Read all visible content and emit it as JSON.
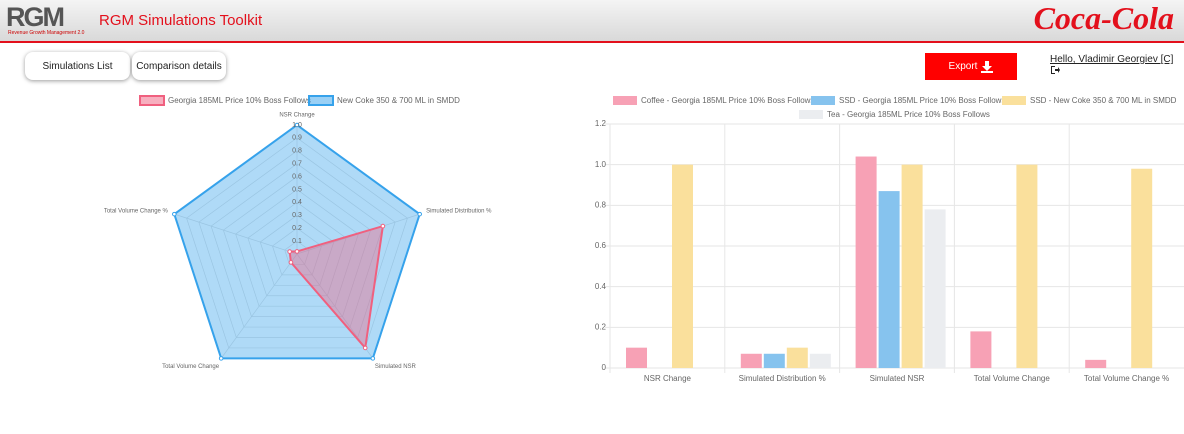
{
  "header": {
    "logo": "RGM",
    "logo_subtitle": "Revenue Growth Management 2.0",
    "title": "RGM Simulations Toolkit",
    "brand": "Coca-Cola"
  },
  "nav": {
    "buttons": [
      "Simulations List",
      "Comparison details"
    ],
    "export": "Export",
    "user": "Hello, Vladimir Georgiev [C]"
  },
  "chart_data": [
    {
      "type": "radar",
      "categories": [
        "NSR Change",
        "Simulated Distribution %",
        "Simulated NSR",
        "Total Volume Change",
        "Total Volume Change %"
      ],
      "series": [
        {
          "name": "Georgia 185ML Price  10% Boss Follows",
          "color": "#f0607f",
          "values": [
            0.02,
            0.7,
            0.9,
            0.08,
            0.06
          ]
        },
        {
          "name": "New Coke 350 & 700 ML in SMDD",
          "color": "#36a2eb",
          "values": [
            1,
            1,
            1,
            1,
            1
          ]
        }
      ],
      "ylim": [
        0,
        1
      ],
      "yticks": [
        0.1,
        0.2,
        0.3,
        0.4,
        0.5,
        0.6,
        0.7,
        0.8,
        0.9,
        {
          "value": 1,
          "label": "1.0"
        }
      ]
    },
    {
      "type": "bar",
      "categories": [
        "NSR Change",
        "Simulated Distribution %",
        "Simulated NSR",
        "Total Volume Change",
        "Total Volume Change %"
      ],
      "series": [
        {
          "name": "Coffee - Georgia 185ML Price  10% Boss Follows",
          "color": "#f7a1b5",
          "values": [
            0.1,
            0.07,
            1.04,
            0.18,
            0.04
          ]
        },
        {
          "name": "SSD - Georgia 185ML Price  10% Boss Follows",
          "color": "#86c3ee",
          "values": [
            0,
            0.07,
            0.87,
            0,
            0
          ]
        },
        {
          "name": "SSD - New Coke 350 & 700 ML in SMDD",
          "color": "#fae09c",
          "values": [
            1,
            0.1,
            1,
            1,
            0.98
          ]
        },
        {
          "name": "Tea - Georgia 185ML Price  10% Boss Follows",
          "color": "#ebedf0",
          "values": [
            0,
            0.07,
            0.78,
            0,
            0
          ]
        }
      ],
      "ylim": [
        0,
        1.2
      ],
      "yticks": [
        0,
        0.2,
        0.4,
        0.6,
        0.8,
        {
          "value": 1,
          "label": "1.0"
        },
        1.2
      ],
      "grid": true
    }
  ]
}
